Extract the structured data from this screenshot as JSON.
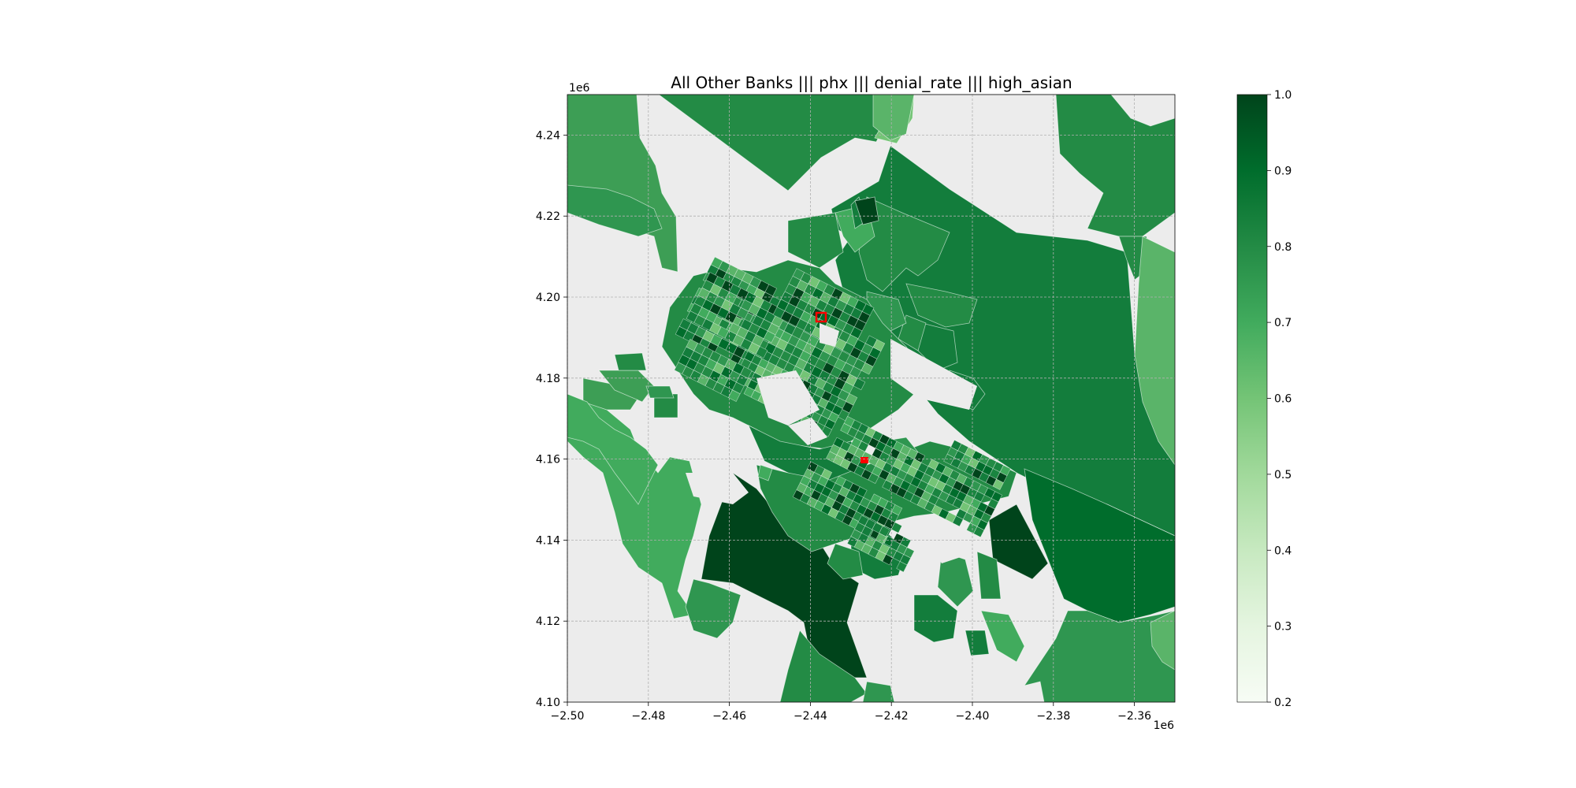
{
  "figure": {
    "title": "All Other Banks ||| phx ||| denial_rate ||| high_asian"
  },
  "map": {
    "x_ticks": [
      "−2.50",
      "−2.48",
      "−2.46",
      "−2.44",
      "−2.42",
      "−2.40",
      "−2.38",
      "−2.36"
    ],
    "y_ticks": [
      "4.10",
      "4.12",
      "4.14",
      "4.16",
      "4.18",
      "4.20",
      "4.22",
      "4.24"
    ],
    "x_offset_label": "1e6",
    "y_offset_label": "1e6",
    "xlim": [
      -2.5,
      -2.35
    ],
    "ylim": [
      4.1,
      4.25
    ],
    "background_color": "#ececec",
    "grid": true,
    "highlight_color": "#ff0000",
    "colormap": "Greens"
  },
  "colorbar": {
    "ticks": [
      "0.2",
      "0.3",
      "0.4",
      "0.5",
      "0.6",
      "0.7",
      "0.8",
      "0.9",
      "1.0"
    ],
    "min": 0.2,
    "max": 1.0
  }
}
